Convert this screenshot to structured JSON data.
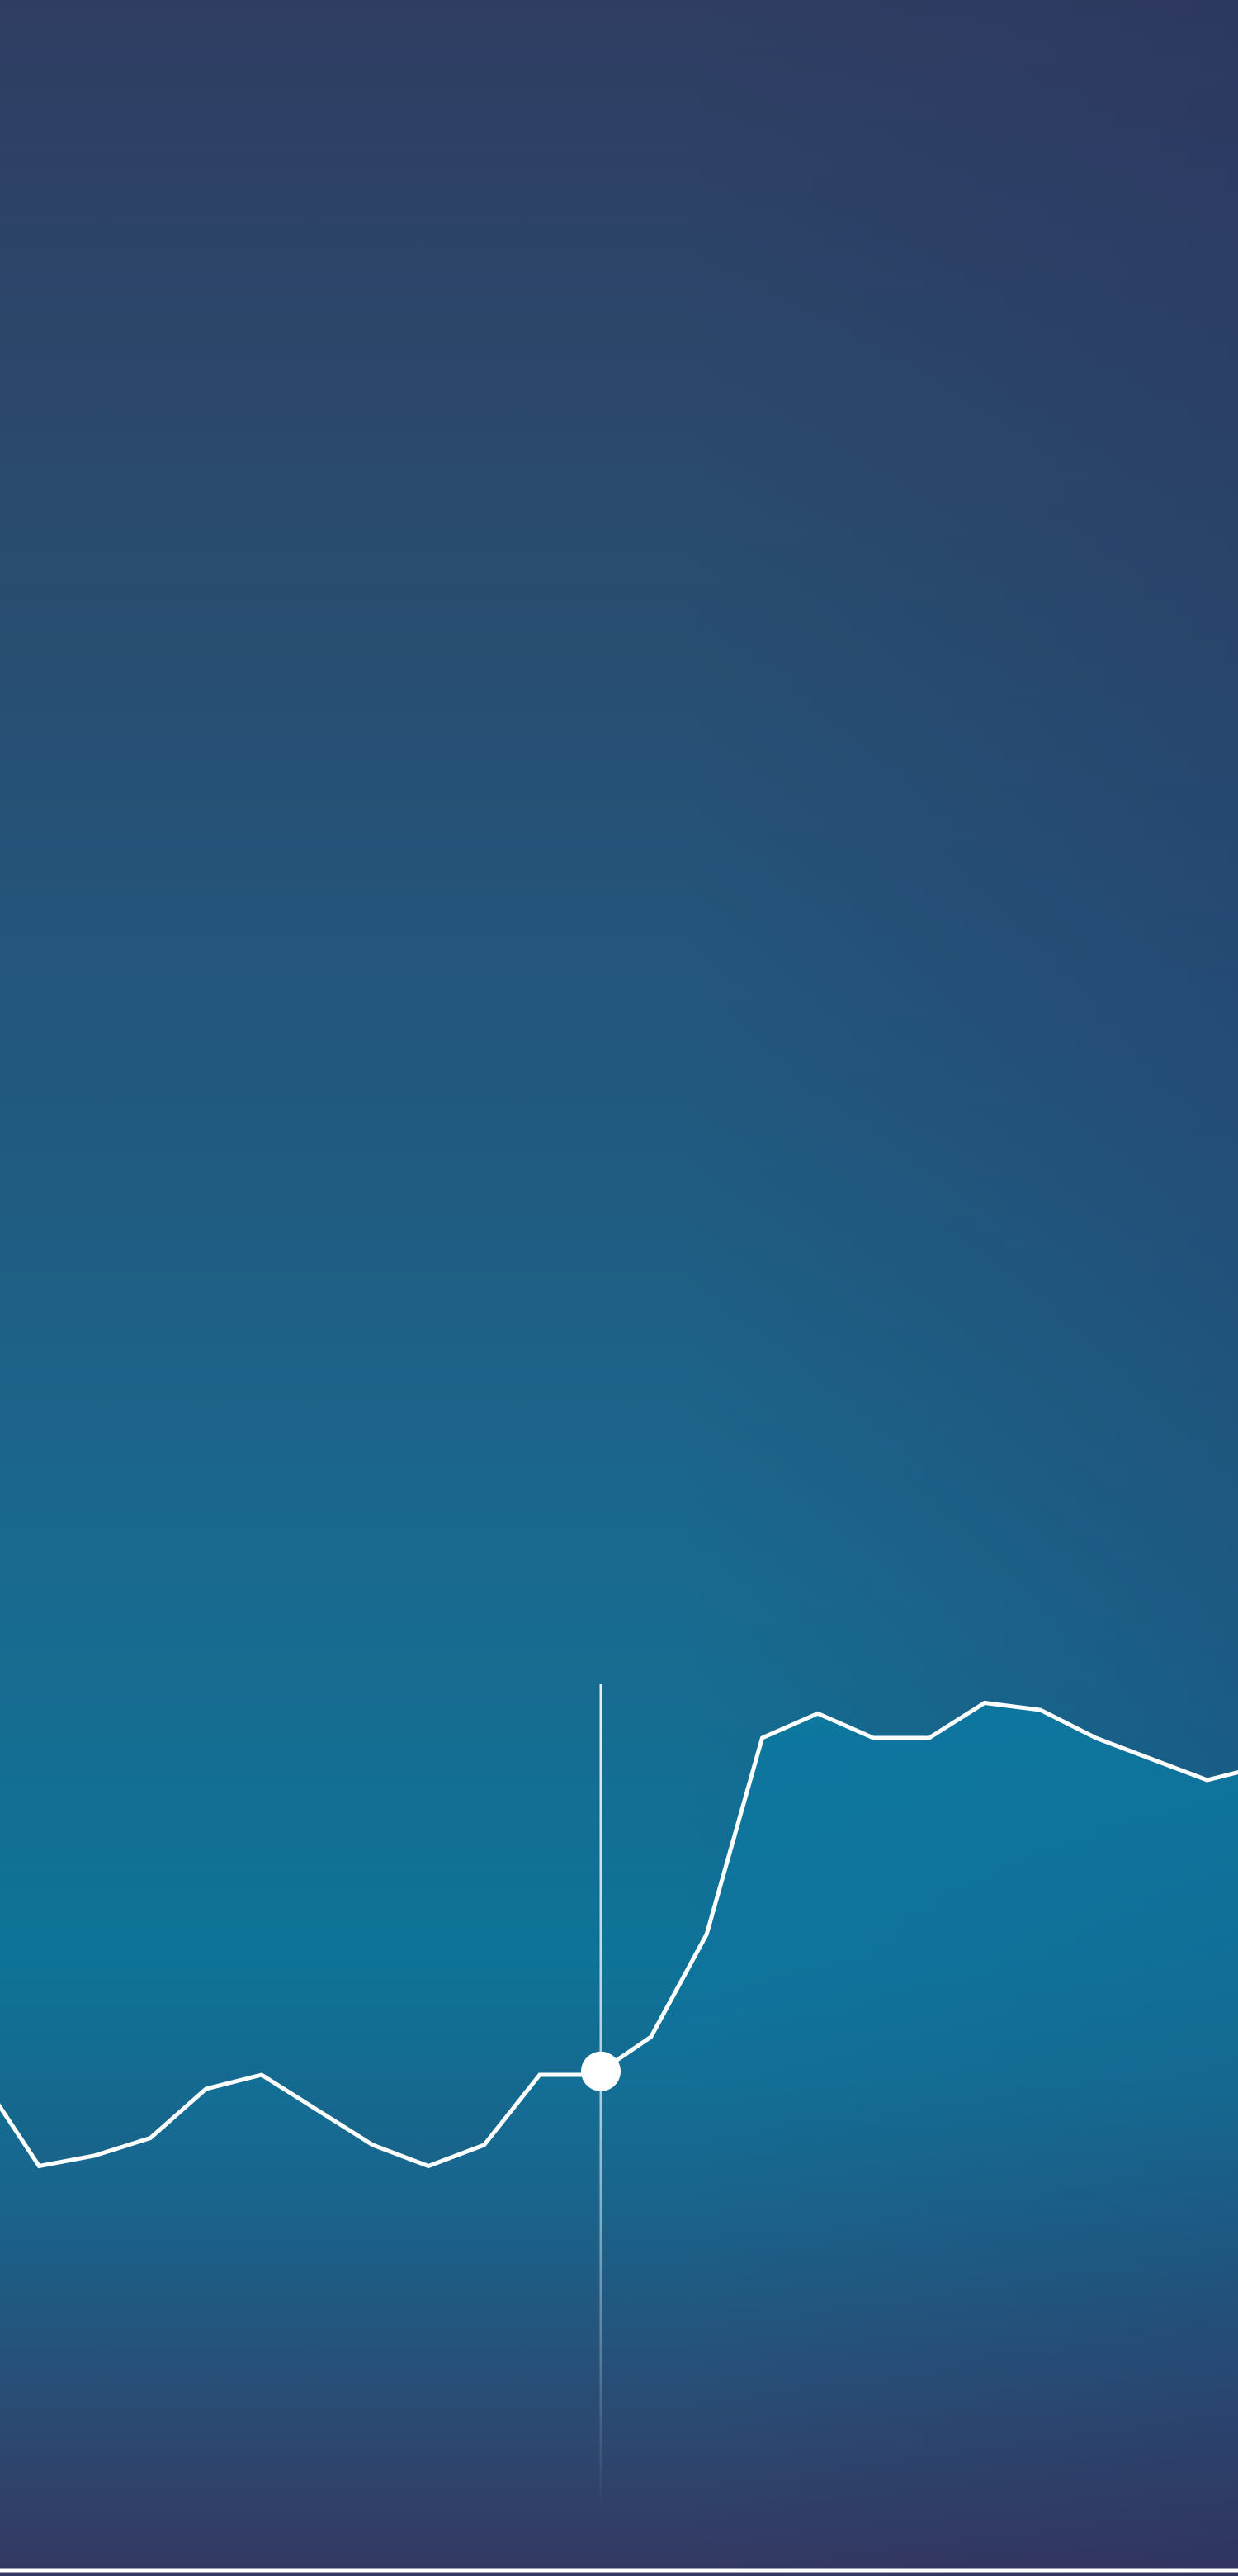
{
  "colors": {
    "line": "#ffffff",
    "fill_top": "#0b7aa2",
    "fill_bottom": "#2d4b73",
    "cursor": "#ffffff"
  },
  "chart_data": {
    "type": "area",
    "title": "",
    "xlabel": "",
    "ylabel": "",
    "grid": false,
    "legend": "none",
    "x": [
      0,
      1,
      2,
      3,
      4,
      5,
      6,
      7,
      8,
      9,
      10,
      11,
      12,
      13,
      14,
      15,
      16,
      17,
      18,
      19,
      20,
      21,
      22,
      23
    ],
    "xlim": [
      0,
      23
    ],
    "ylim": [
      0,
      100
    ],
    "series": [
      {
        "values": [
          21,
          9,
          10.5,
          13,
          20,
          22,
          17,
          12,
          9,
          12,
          22,
          22,
          27.4,
          42,
          70,
          73.5,
          70,
          70,
          75,
          74,
          70,
          67,
          64,
          66
        ]
      }
    ],
    "cursor": {
      "x": 11.1,
      "y": 22.5
    }
  }
}
